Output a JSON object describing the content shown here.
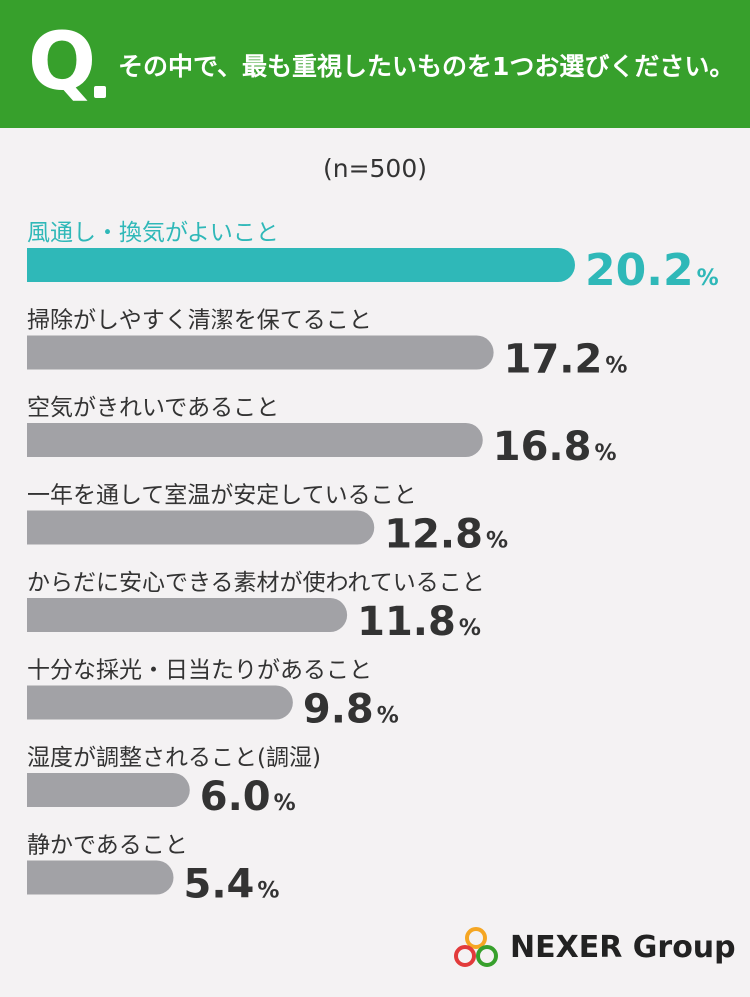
{
  "header": {
    "mark": "Q",
    "question": "その中で、最も重視したいものを1つお選びください。"
  },
  "sample_size": "(n=500)",
  "colors": {
    "header_bg": "#37a02c",
    "highlight": "#2fb8b8",
    "bar": "#a2a2a6",
    "text": "#333333"
  },
  "chart_data": {
    "type": "bar",
    "orientation": "horizontal",
    "unit": "%",
    "categories": [
      "風通し・換気がよいこと",
      "掃除がしやすく清潔を保てること",
      "空気がきれいであること",
      "一年を通して室温が安定していること",
      "からだに安心できる素材が使われていること",
      "十分な採光・日当たりがあること",
      "湿度が調整されること(調湿)",
      "静かであること"
    ],
    "values": [
      20.2,
      17.2,
      16.8,
      12.8,
      11.8,
      9.8,
      6.0,
      5.4
    ],
    "value_labels": [
      "20.2",
      "17.2",
      "16.8",
      "12.8",
      "11.8",
      "9.8",
      "6.0",
      "5.4"
    ],
    "highlight_index": 0
  },
  "brand": {
    "name": "NEXER Group",
    "icon": "nexer-rings-logo-icon"
  }
}
